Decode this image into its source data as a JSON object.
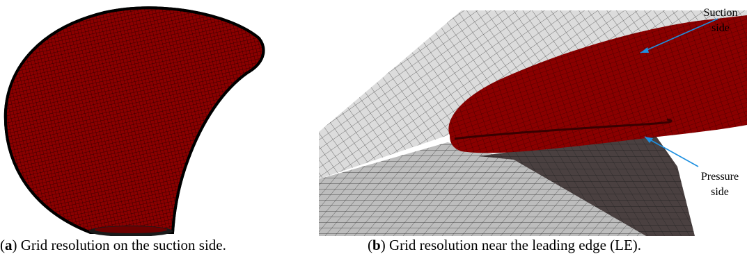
{
  "panels": [
    {
      "id": "a",
      "tag": "a",
      "caption": "Grid resolution on the suction side."
    },
    {
      "id": "b",
      "tag": "b",
      "caption": "Grid resolution near the leading edge (LE)."
    }
  ],
  "annotations": {
    "suction": {
      "line1": "Suction",
      "line2": "side"
    },
    "pressure": {
      "line1": "Pressure",
      "line2": "side"
    }
  },
  "colors": {
    "blade": "#8b0000",
    "blade_dark": "#5a0000",
    "mesh_light": "#e6e6e6",
    "mesh_dark": "#6e6e6e",
    "arrow": "#1e90e0"
  }
}
